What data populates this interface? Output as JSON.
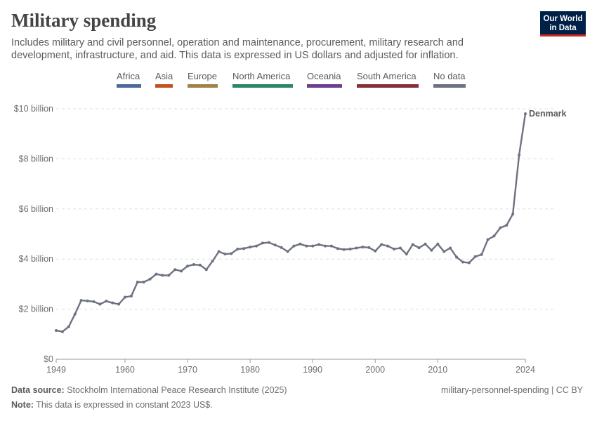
{
  "header": {
    "title": "Military spending",
    "subtitle": "Includes military and civil personnel, operation and maintenance, procurement, military research and development, infrastructure, and aid. This data is expressed in US dollars and adjusted for inflation.",
    "logo_line1": "Our World",
    "logo_line2": "in Data"
  },
  "legend": {
    "items": [
      {
        "label": "Africa",
        "color": "#4c6a9c"
      },
      {
        "label": "Asia",
        "color": "#c15322"
      },
      {
        "label": "Europe",
        "color": "#a2814c"
      },
      {
        "label": "North America",
        "color": "#2d8767"
      },
      {
        "label": "Oceania",
        "color": "#6d3e91"
      },
      {
        "label": "South America",
        "color": "#883039"
      },
      {
        "label": "No data",
        "color": "#6d7280"
      }
    ]
  },
  "chart_data": {
    "type": "line",
    "title": "Military spending",
    "xlabel": "",
    "ylabel": "",
    "xlim": [
      1949,
      2024
    ],
    "ylim": [
      0,
      10
    ],
    "y_unit": "billion",
    "y_ticks": [
      "$0",
      "$2 billion",
      "$4 billion",
      "$6 billion",
      "$8 billion",
      "$10 billion"
    ],
    "y_tick_values": [
      0,
      2,
      4,
      6,
      8,
      10
    ],
    "x_ticks": [
      "1949",
      "1960",
      "1970",
      "1980",
      "1990",
      "2000",
      "2010",
      "2024"
    ],
    "x_tick_values": [
      1949,
      1960,
      1970,
      1980,
      1990,
      2000,
      2010,
      2024
    ],
    "grid": "horizontal-dashed",
    "series": [
      {
        "name": "Denmark",
        "color": "#6d7280",
        "x": [
          1949,
          1950,
          1951,
          1952,
          1953,
          1954,
          1955,
          1956,
          1957,
          1958,
          1959,
          1960,
          1961,
          1962,
          1963,
          1964,
          1965,
          1966,
          1967,
          1968,
          1969,
          1970,
          1971,
          1972,
          1973,
          1974,
          1975,
          1976,
          1977,
          1978,
          1979,
          1980,
          1981,
          1982,
          1983,
          1984,
          1985,
          1986,
          1987,
          1988,
          1989,
          1990,
          1991,
          1992,
          1993,
          1994,
          1995,
          1996,
          1997,
          1998,
          1999,
          2000,
          2001,
          2002,
          2003,
          2004,
          2005,
          2006,
          2007,
          2008,
          2009,
          2010,
          2011,
          2012,
          2013,
          2014,
          2015,
          2016,
          2017,
          2018,
          2019,
          2020,
          2021,
          2022,
          2023,
          2024
        ],
        "values": [
          1.15,
          1.1,
          1.3,
          1.8,
          2.35,
          2.33,
          2.3,
          2.2,
          2.32,
          2.25,
          2.2,
          2.48,
          2.52,
          3.08,
          3.08,
          3.2,
          3.4,
          3.35,
          3.35,
          3.58,
          3.52,
          3.72,
          3.78,
          3.76,
          3.58,
          3.92,
          4.3,
          4.2,
          4.22,
          4.4,
          4.42,
          4.48,
          4.52,
          4.64,
          4.66,
          4.56,
          4.46,
          4.3,
          4.52,
          4.6,
          4.52,
          4.52,
          4.58,
          4.52,
          4.52,
          4.42,
          4.38,
          4.4,
          4.44,
          4.48,
          4.46,
          4.32,
          4.58,
          4.52,
          4.4,
          4.44,
          4.2,
          4.58,
          4.45,
          4.6,
          4.35,
          4.6,
          4.3,
          4.44,
          4.08,
          3.88,
          3.85,
          4.1,
          4.18,
          4.78,
          4.92,
          5.25,
          5.35,
          5.8,
          8.15,
          9.8
        ]
      }
    ]
  },
  "footer": {
    "source_label": "Data source:",
    "source_text": "Stockholm International Peace Research Institute (2025)",
    "note_label": "Note:",
    "note_text": "This data is expressed in constant 2023 US$.",
    "slug": "military-personnel-spending | CC BY"
  }
}
